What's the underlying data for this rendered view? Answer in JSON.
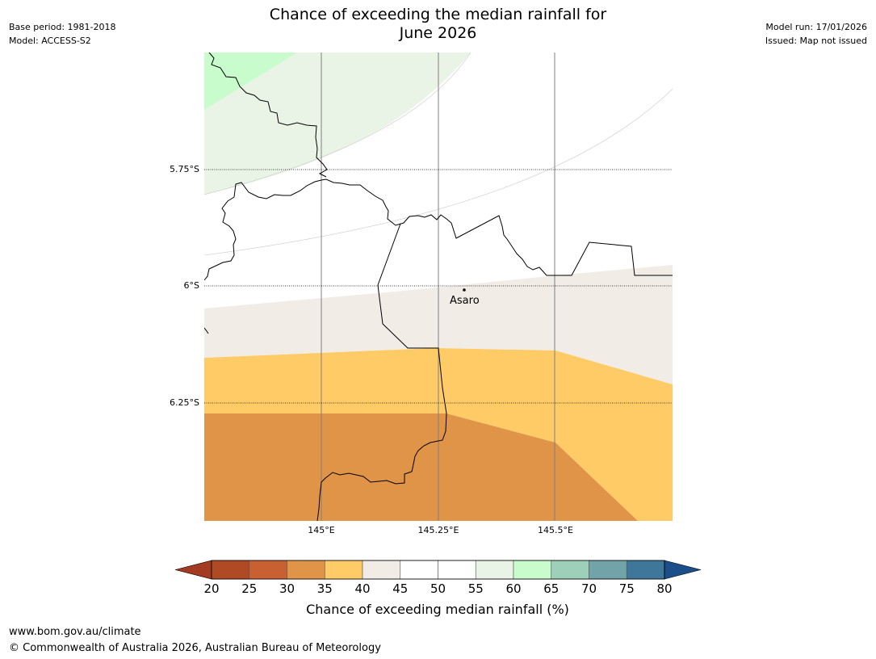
{
  "title_line1": "Chance of exceeding the median rainfall for",
  "title_line2": "June 2026",
  "meta_left": {
    "base_period": "Base period: 1981-2018",
    "model": "Model: ACCESS-S2"
  },
  "meta_right": {
    "model_run": "Model run: 17/01/2026",
    "issued": "Issued: Map not issued"
  },
  "map": {
    "latitude_labels": [
      "5.75°S",
      "6°S",
      "6.25°S"
    ],
    "longitude_labels": [
      "145°E",
      "145.25°E",
      "145.5°E"
    ],
    "place": "Asaro"
  },
  "legend": {
    "ticks": [
      "20",
      "25",
      "30",
      "35",
      "40",
      "45",
      "50",
      "55",
      "60",
      "65",
      "70",
      "75",
      "80"
    ],
    "label": "Chance of exceeding median rainfall (%)",
    "colors": [
      "#a23b22",
      "#b04a25",
      "#c96031",
      "#e09447",
      "#fecb66",
      "#f1ece6",
      "#ffffff",
      "#ffffff",
      "#e9f4e6",
      "#c8fccc",
      "#9ecfb8",
      "#71a3a9",
      "#3e7799",
      "#1a4f8a"
    ]
  },
  "footer": {
    "url": "www.bom.gov.au/climate",
    "copyright": "© Commonwealth of Australia 2026, Australian Bureau of Meteorology"
  }
}
